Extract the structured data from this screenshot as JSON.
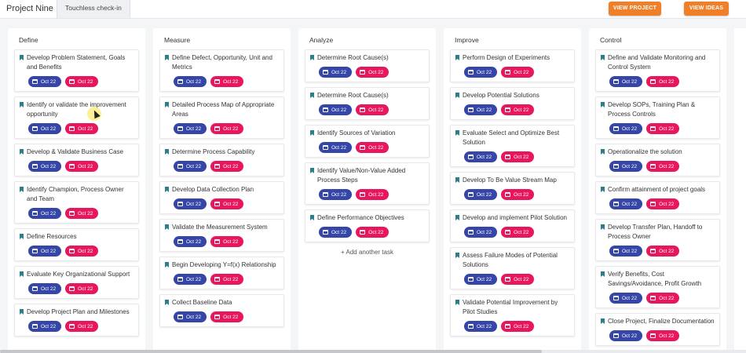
{
  "header": {
    "project_title": "Project Nine",
    "tab_label": "Touchless check-in",
    "view_project_label": "VIEW PROJECT",
    "view_ideas_label": "VIEW IDEAS"
  },
  "colors": {
    "accent": "#f07f2a",
    "start_chip": "#3545a8",
    "due_chip": "#e8175d",
    "bookmark": "#2e7d8c"
  },
  "columns": [
    {
      "title": "Define",
      "tasks": [
        {
          "title": "Develop Problem Statement, Goals and Benefits",
          "start": "Oct 22",
          "due": "Oct 22"
        },
        {
          "title": "Identify or validate the improvement opportunity",
          "start": "Oct 22",
          "due": "Oct 22"
        },
        {
          "title": "Develop & Validate Business Case",
          "start": "Oct 22",
          "due": "Oct 22"
        },
        {
          "title": "Identify Champion, Process Owner and Team",
          "start": "Oct 22",
          "due": "Oct 22"
        },
        {
          "title": "Define Resources",
          "start": "Oct 22",
          "due": "Oct 22"
        },
        {
          "title": "Evaluate Key Organizational Support",
          "start": "Oct 22",
          "due": "Oct 22"
        },
        {
          "title": "Develop Project Plan and Milestones",
          "start": "Oct 22",
          "due": "Oct 22"
        }
      ]
    },
    {
      "title": "Measure",
      "tasks": [
        {
          "title": "Define Defect, Opportunity, Unit and Metrics",
          "start": "Oct 22",
          "due": "Oct 22"
        },
        {
          "title": "Detailed Process Map of Appropriate Areas",
          "start": "Oct 22",
          "due": "Oct 22"
        },
        {
          "title": "Determine Process Capability",
          "start": "Oct 22",
          "due": "Oct 22"
        },
        {
          "title": "Develop Data Collection Plan",
          "start": "Oct 22",
          "due": "Oct 22"
        },
        {
          "title": "Validate the Measurement System",
          "start": "Oct 22",
          "due": "Oct 22"
        },
        {
          "title": "Begin Developing Y=f(x) Relationship",
          "start": "Oct 22",
          "due": "Oct 22"
        },
        {
          "title": "Collect Baseline Data",
          "start": "Oct 22",
          "due": "Oct 22"
        }
      ]
    },
    {
      "title": "Analyze",
      "tasks": [
        {
          "title": "Determine Root Cause(s)",
          "start": "Oct 22",
          "due": "Oct 22"
        },
        {
          "title": "Determine Root Cause(s)",
          "start": "Oct 22",
          "due": "Oct 22"
        },
        {
          "title": "Identify Sources of Variation",
          "start": "Oct 22",
          "due": "Oct 22"
        },
        {
          "title": "Identify Value/Non-Value Added Process Steps",
          "start": "Oct 22",
          "due": "Oct 22"
        },
        {
          "title": "Define Performance Objectives",
          "start": "Oct 22",
          "due": "Oct 22"
        }
      ],
      "add_label": "+ Add another task"
    },
    {
      "title": "Improve",
      "tasks": [
        {
          "title": "Perform Design of Experiments",
          "start": "Oct 22",
          "due": "Oct 22"
        },
        {
          "title": "Develop Potential Solutions",
          "start": "Oct 22",
          "due": "Oct 22"
        },
        {
          "title": "Evaluate Select and Optimize Best Solution",
          "start": "Oct 22",
          "due": "Oct 22"
        },
        {
          "title": "Develop To Be Value Stream Map",
          "start": "Oct 22",
          "due": "Oct 22"
        },
        {
          "title": "Develop and implement Pilot Solution",
          "start": "Oct 22",
          "due": "Oct 22"
        },
        {
          "title": "Assess Failure Modes of Potential Solutions",
          "start": "Oct 22",
          "due": "Oct 22"
        },
        {
          "title": "Validate Potential Improvement by Pilot Studies",
          "start": "Oct 22",
          "due": "Oct 22"
        }
      ]
    },
    {
      "title": "Control",
      "tasks": [
        {
          "title": "Define and Validate Monitoring and Control System",
          "start": "Oct 22",
          "due": "Oct 22"
        },
        {
          "title": "Develop SOPs, Training Plan & Process Controls",
          "start": "Oct 22",
          "due": "Oct 22"
        },
        {
          "title": "Operationalize the solution",
          "start": "Oct 22",
          "due": "Oct 22"
        },
        {
          "title": "Confirm attainment of project goals",
          "start": "Oct 22",
          "due": "Oct 22"
        },
        {
          "title": "Develop Transfer Plan, Handoff to Process Owner",
          "start": "Oct 22",
          "due": "Oct 22"
        },
        {
          "title": "Verify Benefits, Cost Savings/Avoidance, Profit Growth",
          "start": "Oct 22",
          "due": "Oct 22"
        },
        {
          "title": "Close Project, Finalize Documentation",
          "start": "Oct 22",
          "due": "Oct 22"
        }
      ]
    }
  ]
}
